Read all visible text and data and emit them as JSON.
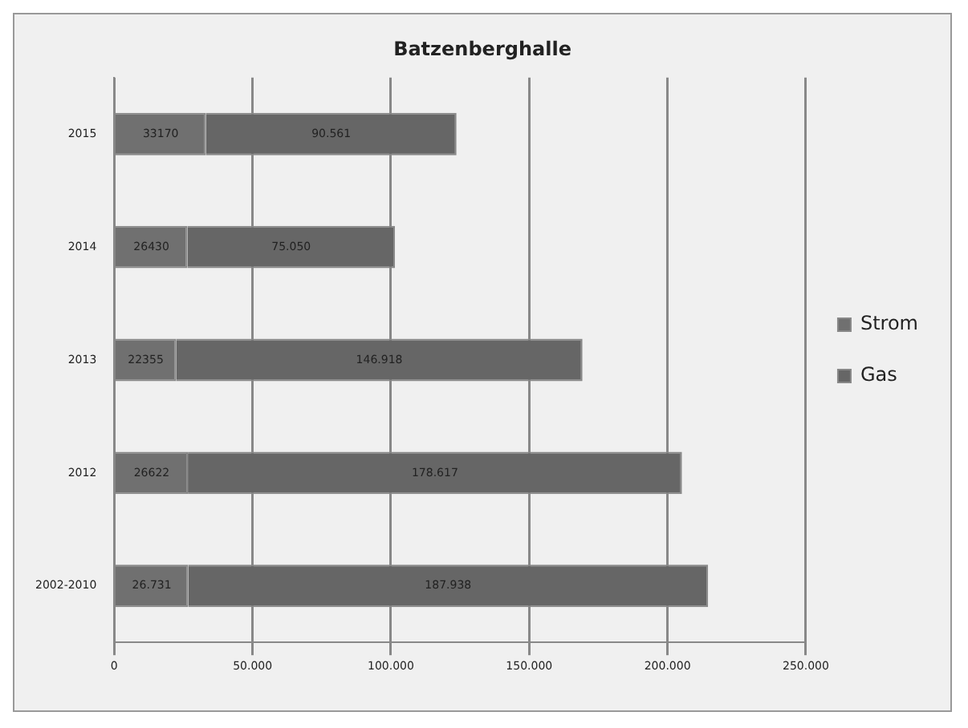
{
  "chart_data": {
    "type": "bar",
    "title": "Batzenberghalle",
    "orientation": "horizontal",
    "stacked": true,
    "categories": [
      "2015",
      "2014",
      "2013",
      "2012",
      "2002-2010"
    ],
    "series": [
      {
        "name": "Strom",
        "color": "#707070",
        "values": [
          33170,
          26430,
          22355,
          26622,
          26731
        ],
        "value_labels": [
          "33170",
          "26430",
          "22355",
          "26622",
          "26.731"
        ]
      },
      {
        "name": "Gas",
        "color": "#666666",
        "values": [
          90561,
          75050,
          146918,
          178617,
          187938
        ],
        "value_labels": [
          "90.561",
          "75.050",
          "146.918",
          "178.617",
          "187.938"
        ]
      }
    ],
    "xlim": [
      0,
      250000
    ],
    "xticks": [
      {
        "value": 0,
        "label": "0"
      },
      {
        "value": 50000,
        "label": "50.000"
      },
      {
        "value": 100000,
        "label": "100.000"
      },
      {
        "value": 150000,
        "label": "150.000"
      },
      {
        "value": 200000,
        "label": "200.000"
      },
      {
        "value": 250000,
        "label": "250.000"
      }
    ],
    "grid": "x",
    "legend": "right"
  }
}
